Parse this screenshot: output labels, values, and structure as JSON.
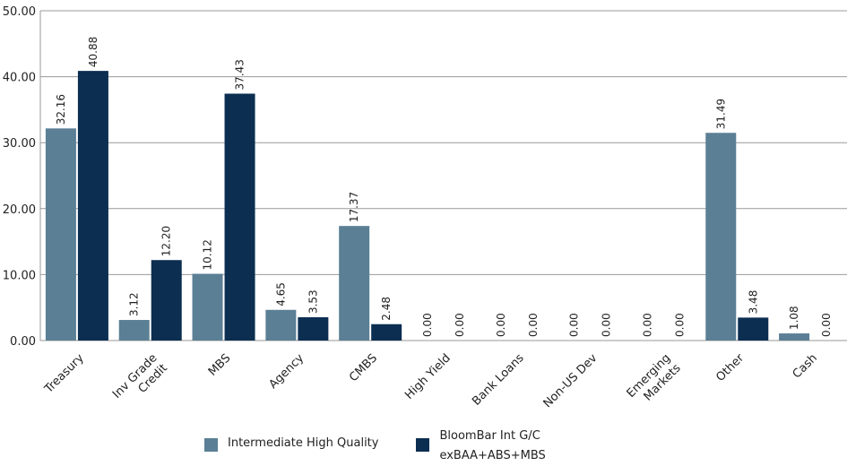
{
  "chart_data": {
    "type": "bar",
    "categories": [
      "Treasury",
      "Inv Grade Credit",
      "MBS",
      "Agency",
      "CMBS",
      "High Yield",
      "Bank Loans",
      "Non-US Dev",
      "Emerging Markets",
      "Other",
      "Cash"
    ],
    "category_lines": [
      [
        "Treasury"
      ],
      [
        "Inv Grade",
        "Credit"
      ],
      [
        "MBS"
      ],
      [
        "Agency"
      ],
      [
        "CMBS"
      ],
      [
        "High Yield"
      ],
      [
        "Bank Loans"
      ],
      [
        "Non-US Dev"
      ],
      [
        "Emerging",
        "Markets"
      ],
      [
        "Other"
      ],
      [
        "Cash"
      ]
    ],
    "series": [
      {
        "name": "Intermediate High Quality",
        "values": [
          32.16,
          3.12,
          10.12,
          4.65,
          17.37,
          0.0,
          0.0,
          0.0,
          0.0,
          31.49,
          1.08
        ],
        "color": "#5b7f95"
      },
      {
        "name": "BloomBar Int G/C exBAA+ABS+MBS",
        "values": [
          40.88,
          12.2,
          37.43,
          3.53,
          2.48,
          0.0,
          0.0,
          0.0,
          0.0,
          3.48,
          0.0
        ],
        "color": "#0b2e51"
      }
    ],
    "yticks": [
      "0.00",
      "10.00",
      "20.00",
      "30.00",
      "40.00",
      "50.00"
    ],
    "ylim": [
      0,
      50
    ],
    "grid": true,
    "gridline_color": "#9a9a9a",
    "legend_position": "bottom",
    "title": "",
    "xlabel": "",
    "ylabel": ""
  },
  "legend": {
    "item1_label": "Intermediate High Quality",
    "item2_label": "BloomBar Int G/C exBAA+ABS+MBS"
  }
}
